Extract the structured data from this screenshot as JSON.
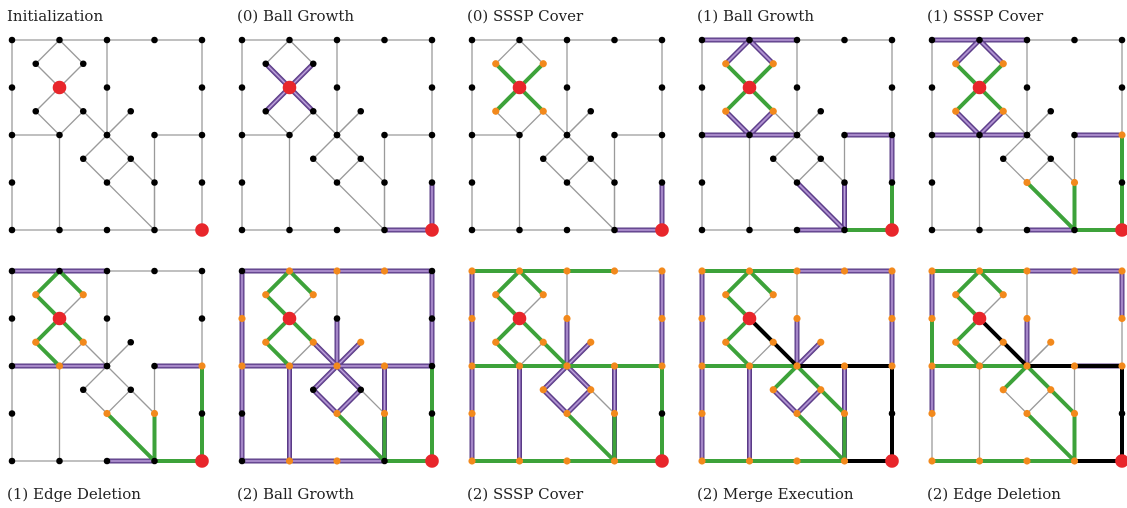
{
  "figure": {
    "panels": [
      {
        "caption": "Initialization"
      },
      {
        "caption": "(0) Ball Growth"
      },
      {
        "caption": "(0) SSSP Cover"
      },
      {
        "caption": "(1) Ball Growth"
      },
      {
        "caption": "(1) SSSP Cover"
      },
      {
        "caption": "(1) Edge Deletion"
      },
      {
        "caption": "(2) Ball Growth"
      },
      {
        "caption": "(2) SSSP Cover"
      },
      {
        "caption": "(2) Merge Execution"
      },
      {
        "caption": "(2) Edge Deletion"
      }
    ]
  },
  "legend_colors": {
    "base_edge": "#9a9a9a",
    "ball_edge": "#8e6bb8",
    "ball_edge_core": "#5a3c86",
    "cover_edge": "#3da23a",
    "merge_edge": "#000000",
    "source_node": "#e8262b",
    "covered_node": "#f2891c",
    "node": "#000000"
  }
}
